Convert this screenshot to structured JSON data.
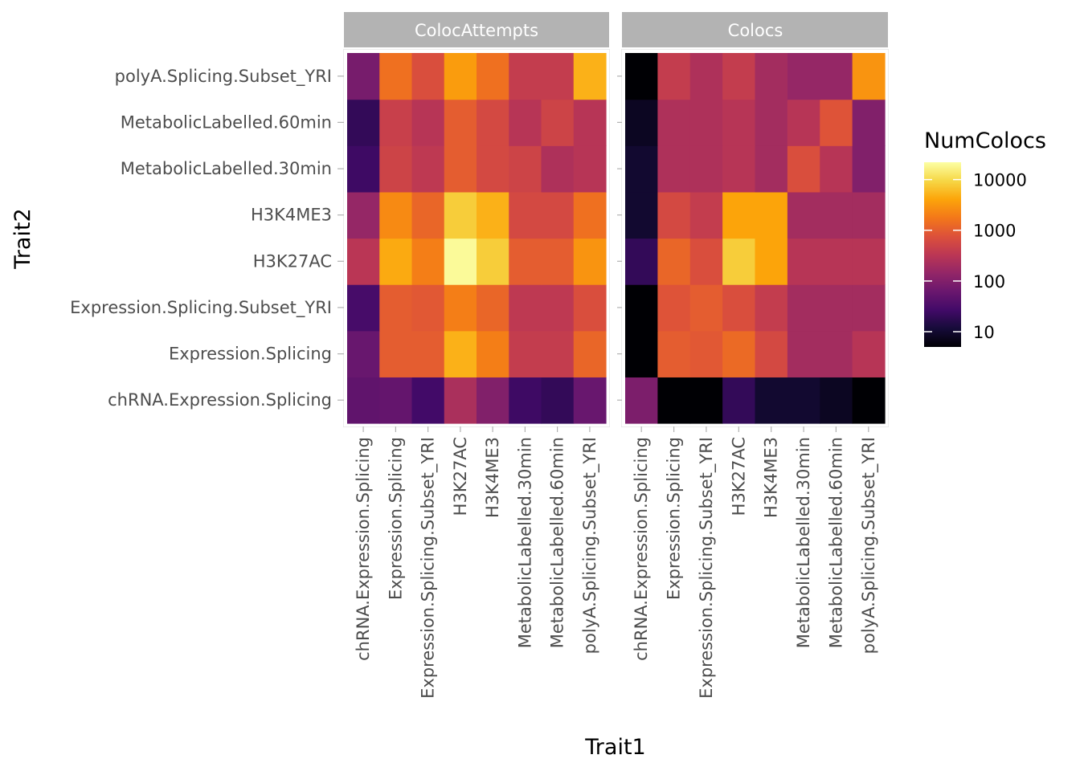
{
  "chart_data": {
    "type": "heatmap",
    "facets": [
      "ColocAttempts",
      "Colocs"
    ],
    "x_categories": [
      "chRNA.Expression.Splicing",
      "Expression.Splicing",
      "Expression.Splicing.Subset_YRI",
      "H3K27AC",
      "H3K4ME3",
      "MetabolicLabelled.30min",
      "MetabolicLabelled.60min",
      "polyA.Splicing.Subset_YRI"
    ],
    "y_categories": [
      "chRNA.Expression.Splicing",
      "Expression.Splicing",
      "Expression.Splicing.Subset_YRI",
      "H3K27AC",
      "H3K4ME3",
      "MetabolicLabelled.30min",
      "MetabolicLabelled.60min",
      "polyA.Splicing.Subset_YRI"
    ],
    "xlabel": "Trait1",
    "ylabel": "Trait2",
    "legend": {
      "title": "NumColocs",
      "scale": "log10",
      "colormap": "inferno",
      "range": [
        5,
        22000
      ],
      "breaks": [
        10,
        100,
        1000,
        10000
      ],
      "break_labels": [
        "10",
        "100",
        "1000",
        "10000"
      ],
      "position": "right"
    },
    "strip_color": "#b3b3b3",
    "panels": [
      {
        "facet": "ColocAttempts",
        "values": [
          [
            50,
            55,
            27,
            230,
            100,
            25,
            20,
            60
          ],
          [
            60,
            1000,
            1000,
            5000,
            2000,
            400,
            400,
            1200
          ],
          [
            30,
            1000,
            900,
            2000,
            1200,
            350,
            350,
            700
          ],
          [
            320,
            4500,
            2000,
            20000,
            8000,
            1000,
            1000,
            3000
          ],
          [
            150,
            2500,
            1200,
            8000,
            5000,
            600,
            600,
            1500
          ],
          [
            25,
            500,
            350,
            1000,
            600,
            500,
            250,
            300
          ],
          [
            20,
            450,
            300,
            1000,
            600,
            300,
            500,
            300
          ],
          [
            80,
            1500,
            700,
            3500,
            1500,
            400,
            400,
            5000
          ]
        ]
      },
      {
        "facet": "Colocs",
        "values": [
          [
            90,
            5,
            5,
            20,
            10,
            10,
            8,
            5
          ],
          [
            5,
            1000,
            900,
            1300,
            600,
            200,
            200,
            300
          ],
          [
            5,
            800,
            1000,
            700,
            400,
            200,
            200,
            200
          ],
          [
            20,
            1200,
            700,
            8000,
            4000,
            300,
            300,
            300
          ],
          [
            10,
            600,
            400,
            4000,
            4000,
            200,
            200,
            200
          ],
          [
            10,
            250,
            250,
            300,
            200,
            700,
            300,
            100
          ],
          [
            8,
            250,
            250,
            300,
            200,
            300,
            800,
            100
          ],
          [
            5,
            400,
            250,
            400,
            200,
            150,
            150,
            3000
          ]
        ]
      }
    ]
  }
}
